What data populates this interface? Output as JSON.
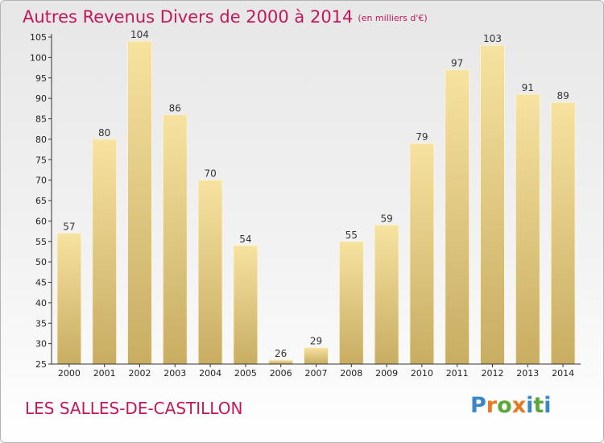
{
  "title": "Autres Revenus Divers de 2000 à 2014",
  "title_unit": "(en milliers d'€)",
  "commune": "LES SALLES-DE-CASTILLON",
  "logo": {
    "text": "Proxiti",
    "letter_colors": [
      "#3a87c8",
      "#e8791f",
      "#5aa83a",
      "#e8791f",
      "#3a87c8",
      "#5aa83a",
      "#3a87c8"
    ]
  },
  "colors": {
    "title": "#c2185b",
    "bar_light": "#f7e2a0",
    "bar_dark": "#c8ad62",
    "axis": "#333333"
  },
  "chart_data": {
    "type": "bar",
    "categories": [
      "2000",
      "2001",
      "2002",
      "2003",
      "2004",
      "2005",
      "2006",
      "2007",
      "2008",
      "2009",
      "2010",
      "2011",
      "2012",
      "2013",
      "2014"
    ],
    "values": [
      57,
      80,
      104,
      86,
      70,
      54,
      26,
      29,
      55,
      59,
      79,
      97,
      103,
      91,
      89
    ],
    "ylim": [
      25,
      105
    ],
    "yticks": [
      25,
      30,
      35,
      40,
      45,
      50,
      55,
      60,
      65,
      70,
      75,
      80,
      85,
      90,
      95,
      100,
      105
    ],
    "grid": false,
    "data_labels": true
  }
}
